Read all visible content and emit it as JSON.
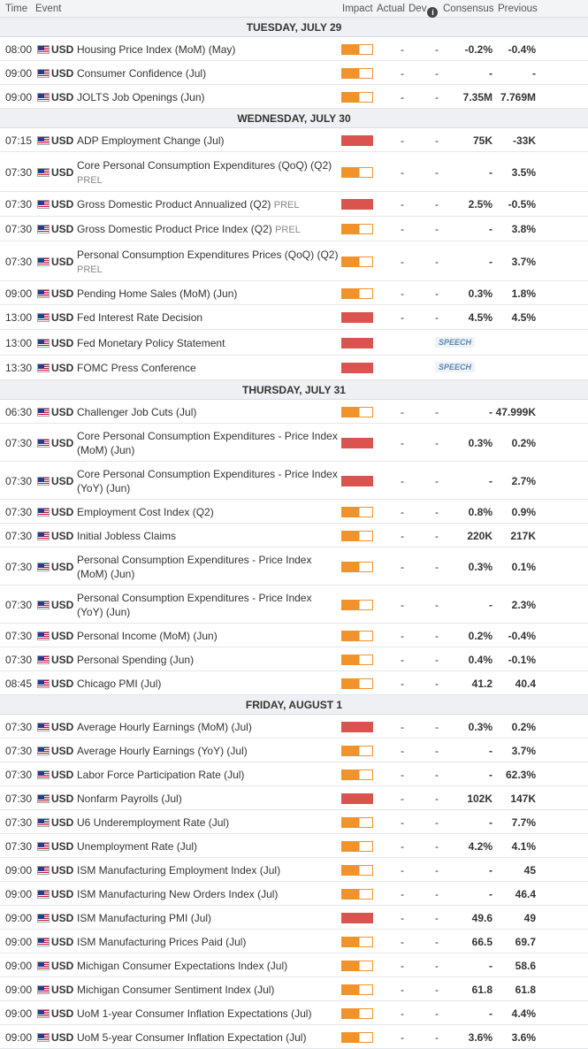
{
  "header": {
    "time": "Time",
    "event": "Event",
    "impact": "Impact",
    "actual": "Actual",
    "dev": "Dev",
    "consensus": "Consensus",
    "previous": "Previous"
  },
  "sections": [
    {
      "date": "TUESDAY, JULY 29",
      "rows": [
        {
          "time": "08:00",
          "cur": "USD",
          "event": "Housing Price Index (MoM) (May)",
          "prel": "",
          "impact": "med",
          "actual": "-",
          "dev": "-",
          "cons": "-0.2%",
          "prev": "-0.4%",
          "h": 27
        },
        {
          "time": "09:00",
          "cur": "USD",
          "event": "Consumer Confidence (Jul)",
          "prel": "",
          "impact": "med",
          "actual": "-",
          "dev": "-",
          "cons": "-",
          "prev": "-",
          "h": 27
        },
        {
          "time": "09:00",
          "cur": "USD",
          "event": "JOLTS Job Openings (Jun)",
          "prel": "",
          "impact": "med",
          "actual": "-",
          "dev": "-",
          "cons": "7.35M",
          "prev": "7.769M",
          "h": 27
        }
      ]
    },
    {
      "date": "WEDNESDAY, JULY 30",
      "rows": [
        {
          "time": "07:15",
          "cur": "USD",
          "event": "ADP Employment Change (Jul)",
          "prel": "",
          "impact": "high",
          "actual": "-",
          "dev": "-",
          "cons": "75K",
          "prev": "-33K",
          "h": 27
        },
        {
          "time": "07:30",
          "cur": "USD",
          "event": "Core Personal Consumption Expenditures (QoQ) (Q2)",
          "prel": "PREL",
          "impact": "med",
          "actual": "-",
          "dev": "-",
          "cons": "-",
          "prev": "3.5%",
          "h": 45
        },
        {
          "time": "07:30",
          "cur": "USD",
          "event": "Gross Domestic Product Annualized (Q2)",
          "prel": "PREL",
          "impact": "high",
          "actual": "-",
          "dev": "-",
          "cons": "2.5%",
          "prev": "-0.5%",
          "h": 28
        },
        {
          "time": "07:30",
          "cur": "USD",
          "event": "Gross Domestic Product Price Index (Q2)",
          "prel": "PREL",
          "impact": "med",
          "actual": "-",
          "dev": "-",
          "cons": "-",
          "prev": "3.8%",
          "h": 28
        },
        {
          "time": "07:30",
          "cur": "USD",
          "event": "Personal Consumption Expenditures Prices (QoQ) (Q2)",
          "prel": "PREL",
          "impact": "med",
          "actual": "-",
          "dev": "-",
          "cons": "-",
          "prev": "3.7%",
          "h": 45
        },
        {
          "time": "09:00",
          "cur": "USD",
          "event": "Pending Home Sales (MoM) (Jun)",
          "prel": "",
          "impact": "med",
          "actual": "-",
          "dev": "-",
          "cons": "0.3%",
          "prev": "1.8%",
          "h": 27
        },
        {
          "time": "13:00",
          "cur": "USD",
          "event": "Fed Interest Rate Decision",
          "prel": "",
          "impact": "high",
          "actual": "-",
          "dev": "-",
          "cons": "4.5%",
          "prev": "4.5%",
          "h": 28
        },
        {
          "time": "13:00",
          "cur": "USD",
          "event": "Fed Monetary Policy Statement",
          "prel": "",
          "impact": "high",
          "speech": "SPEECH",
          "h": 29
        },
        {
          "time": "13:30",
          "cur": "USD",
          "event": "FOMC Press Conference",
          "prel": "",
          "impact": "high",
          "speech": "SPEECH",
          "h": 28
        }
      ]
    },
    {
      "date": "THURSDAY, JULY 31",
      "rows": [
        {
          "time": "06:30",
          "cur": "USD",
          "event": "Challenger Job Cuts (Jul)",
          "prel": "",
          "impact": "med",
          "actual": "-",
          "dev": "-",
          "cons": "-",
          "prev": "47.999K",
          "h": 27
        },
        {
          "time": "07:30",
          "cur": "USD",
          "event": "Core Personal Consumption Expenditures - Price Index (MoM) (Jun)",
          "prel": "",
          "impact": "high",
          "actual": "-",
          "dev": "-",
          "cons": "0.3%",
          "prev": "0.2%",
          "h": 43
        },
        {
          "time": "07:30",
          "cur": "USD",
          "event": "Core Personal Consumption Expenditures - Price Index (YoY) (Jun)",
          "prel": "",
          "impact": "high",
          "actual": "-",
          "dev": "-",
          "cons": "-",
          "prev": "2.7%",
          "h": 43
        },
        {
          "time": "07:30",
          "cur": "USD",
          "event": "Employment Cost Index (Q2)",
          "prel": "",
          "impact": "med",
          "actual": "-",
          "dev": "-",
          "cons": "0.8%",
          "prev": "0.9%",
          "h": 27
        },
        {
          "time": "07:30",
          "cur": "USD",
          "event": "Initial Jobless Claims",
          "prel": "",
          "impact": "med",
          "actual": "-",
          "dev": "-",
          "cons": "220K",
          "prev": "217K",
          "h": 27
        },
        {
          "time": "07:30",
          "cur": "USD",
          "event": "Personal Consumption Expenditures - Price Index (MoM) (Jun)",
          "prel": "",
          "impact": "med",
          "actual": "-",
          "dev": "-",
          "cons": "0.3%",
          "prev": "0.1%",
          "h": 43
        },
        {
          "time": "07:30",
          "cur": "USD",
          "event": "Personal Consumption Expenditures - Price Index (YoY) (Jun)",
          "prel": "",
          "impact": "med",
          "actual": "-",
          "dev": "-",
          "cons": "-",
          "prev": "2.3%",
          "h": 43
        },
        {
          "time": "07:30",
          "cur": "USD",
          "event": "Personal Income (MoM) (Jun)",
          "prel": "",
          "impact": "med",
          "actual": "-",
          "dev": "-",
          "cons": "0.2%",
          "prev": "-0.4%",
          "h": 27
        },
        {
          "time": "07:30",
          "cur": "USD",
          "event": "Personal Spending (Jun)",
          "prel": "",
          "impact": "med",
          "actual": "-",
          "dev": "-",
          "cons": "0.4%",
          "prev": "-0.1%",
          "h": 27
        },
        {
          "time": "08:45",
          "cur": "USD",
          "event": "Chicago PMI (Jul)",
          "prel": "",
          "impact": "med",
          "actual": "-",
          "dev": "-",
          "cons": "41.2",
          "prev": "40.4",
          "h": 27
        }
      ]
    },
    {
      "date": "FRIDAY, AUGUST 1",
      "rows": [
        {
          "time": "07:30",
          "cur": "USD",
          "event": "Average Hourly Earnings (MoM) (Jul)",
          "prel": "",
          "impact": "high",
          "actual": "-",
          "dev": "-",
          "cons": "0.3%",
          "prev": "0.2%",
          "h": 27
        },
        {
          "time": "07:30",
          "cur": "USD",
          "event": "Average Hourly Earnings (YoY) (Jul)",
          "prel": "",
          "impact": "med",
          "actual": "-",
          "dev": "-",
          "cons": "-",
          "prev": "3.7%",
          "h": 27
        },
        {
          "time": "07:30",
          "cur": "USD",
          "event": "Labor Force Participation Rate (Jul)",
          "prel": "",
          "impact": "med",
          "actual": "-",
          "dev": "-",
          "cons": "-",
          "prev": "62.3%",
          "h": 27
        },
        {
          "time": "07:30",
          "cur": "USD",
          "event": "Nonfarm Payrolls (Jul)",
          "prel": "",
          "impact": "high",
          "actual": "-",
          "dev": "-",
          "cons": "102K",
          "prev": "147K",
          "h": 27
        },
        {
          "time": "07:30",
          "cur": "USD",
          "event": "U6 Underemployment Rate (Jul)",
          "prel": "",
          "impact": "med",
          "actual": "-",
          "dev": "-",
          "cons": "-",
          "prev": "7.7%",
          "h": 27
        },
        {
          "time": "07:30",
          "cur": "USD",
          "event": "Unemployment Rate (Jul)",
          "prel": "",
          "impact": "med",
          "actual": "-",
          "dev": "-",
          "cons": "4.2%",
          "prev": "4.1%",
          "h": 27
        },
        {
          "time": "09:00",
          "cur": "USD",
          "event": "ISM Manufacturing Employment Index (Jul)",
          "prel": "",
          "impact": "med",
          "actual": "-",
          "dev": "-",
          "cons": "-",
          "prev": "45",
          "h": 27
        },
        {
          "time": "09:00",
          "cur": "USD",
          "event": "ISM Manufacturing New Orders Index (Jul)",
          "prel": "",
          "impact": "med",
          "actual": "-",
          "dev": "-",
          "cons": "-",
          "prev": "46.4",
          "h": 27
        },
        {
          "time": "09:00",
          "cur": "USD",
          "event": "ISM Manufacturing PMI (Jul)",
          "prel": "",
          "impact": "high",
          "actual": "-",
          "dev": "-",
          "cons": "49.6",
          "prev": "49",
          "h": 27
        },
        {
          "time": "09:00",
          "cur": "USD",
          "event": "ISM Manufacturing Prices Paid (Jul)",
          "prel": "",
          "impact": "med",
          "actual": "-",
          "dev": "-",
          "cons": "66.5",
          "prev": "69.7",
          "h": 27
        },
        {
          "time": "09:00",
          "cur": "USD",
          "event": "Michigan Consumer Expectations Index (Jul)",
          "prel": "",
          "impact": "med",
          "actual": "-",
          "dev": "-",
          "cons": "-",
          "prev": "58.6",
          "h": 27
        },
        {
          "time": "09:00",
          "cur": "USD",
          "event": "Michigan Consumer Sentiment Index (Jul)",
          "prel": "",
          "impact": "med",
          "actual": "-",
          "dev": "-",
          "cons": "61.8",
          "prev": "61.8",
          "h": 27
        },
        {
          "time": "09:00",
          "cur": "USD",
          "event": "UoM 1-year Consumer Inflation Expectations (Jul)",
          "prel": "",
          "impact": "med",
          "actual": "-",
          "dev": "-",
          "cons": "-",
          "prev": "4.4%",
          "h": 27
        },
        {
          "time": "09:00",
          "cur": "USD",
          "event": "UoM 5-year Consumer Inflation Expectation (Jul)",
          "prel": "",
          "impact": "med",
          "actual": "-",
          "dev": "-",
          "cons": "3.6%",
          "prev": "3.6%",
          "h": 27
        }
      ]
    }
  ]
}
